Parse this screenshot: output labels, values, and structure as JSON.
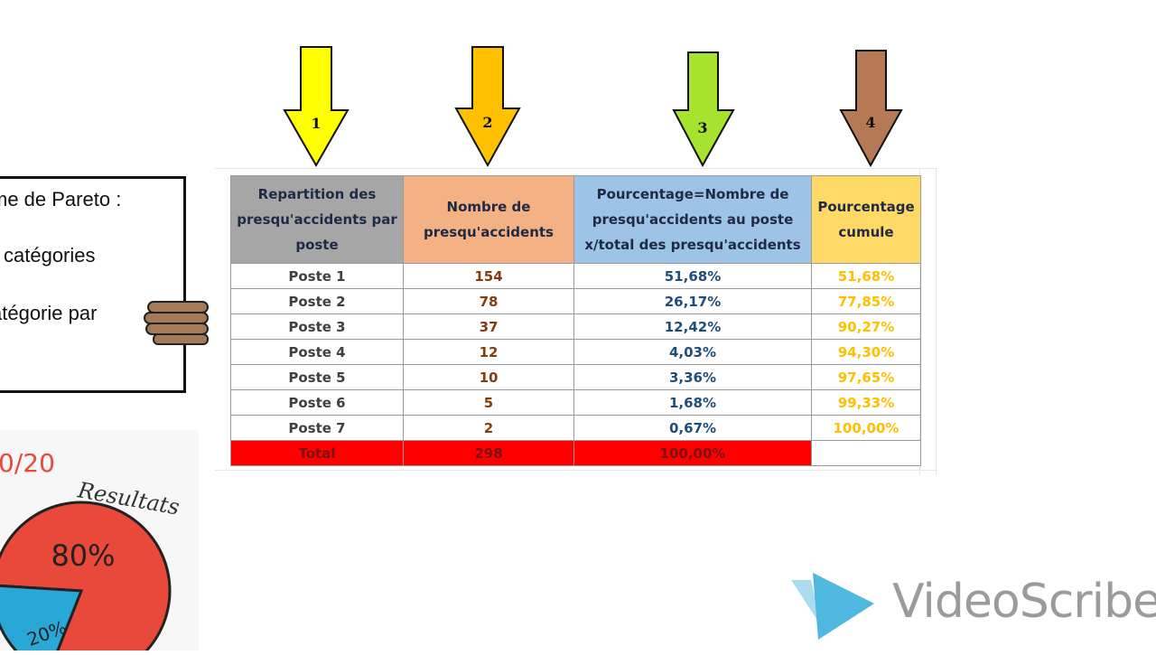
{
  "arrows": [
    {
      "label": "1",
      "color": "#ffff00"
    },
    {
      "label": "2",
      "color": "#ffc000"
    },
    {
      "label": "3",
      "color": "#a6e22e"
    },
    {
      "label": "4",
      "color": "#b57a55"
    }
  ],
  "sign": {
    "line1": "me de Pareto :",
    "line2": "catégories",
    "line3": "atégorie par"
  },
  "table": {
    "headers": [
      [
        "Repartition des",
        "presqu'accidents par",
        "poste"
      ],
      [
        "Nombre de",
        "presqu'accidents"
      ],
      [
        "Pourcentage=Nombre de",
        "presqu'accidents au poste",
        "x/total des presqu'accidents"
      ],
      [
        "Pourcentage",
        "cumule"
      ]
    ],
    "rows": [
      [
        "Poste 1",
        "154",
        "51,68%",
        "51,68%"
      ],
      [
        "Poste 2",
        "78",
        "26,17%",
        "77,85%"
      ],
      [
        "Poste 3",
        "37",
        "12,42%",
        "90,27%"
      ],
      [
        "Poste 4",
        "12",
        "4,03%",
        "94,30%"
      ],
      [
        "Poste 5",
        "10",
        "3,36%",
        "97,65%"
      ],
      [
        "Poste 6",
        "5",
        "1,68%",
        "99,33%"
      ],
      [
        "Poste 7",
        "2",
        "0,67%",
        "100,00%"
      ]
    ],
    "total": [
      "Total",
      "298",
      "100,00%"
    ]
  },
  "pie": {
    "score": "0/20",
    "caption": "Resultats",
    "big_label": "80%",
    "small_label": "20%",
    "big_value": 80,
    "small_value": 20,
    "big_color": "#e8493a",
    "small_color": "#29a8d8"
  },
  "watermark": {
    "text": "VideoScribe"
  }
}
